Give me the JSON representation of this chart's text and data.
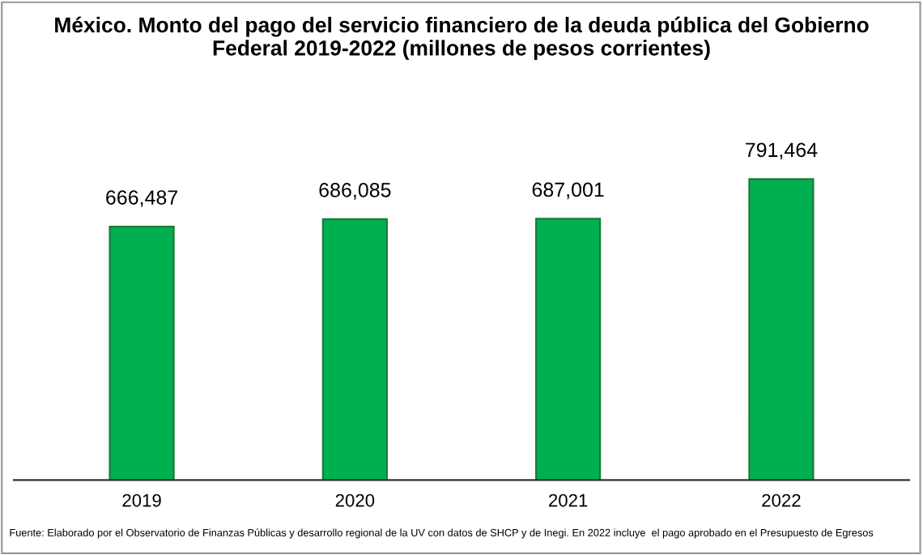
{
  "chart_data": {
    "type": "bar",
    "title": "México. Monto del pago del servicio financiero de la deuda pública del Gobierno\nFederal 2019-2022 (millones de pesos corrientes)",
    "categories": [
      "2019",
      "2020",
      "2021",
      "2022"
    ],
    "values": [
      666487,
      686085,
      687001,
      791464
    ],
    "value_labels": [
      "666,487",
      "686,085",
      "687,001",
      "791,464"
    ],
    "color": "#00b050",
    "annotations": [
      "Fuente: Elaborado por el Observatorio de Finanzas Públicas y desarrollo regional de la UV con datos de SHCP y de Inegi. En 2022 incluye  el pago aprobado en el Presupuesto de Egresos"
    ],
    "tick_labels": "x",
    "grid": false
  }
}
